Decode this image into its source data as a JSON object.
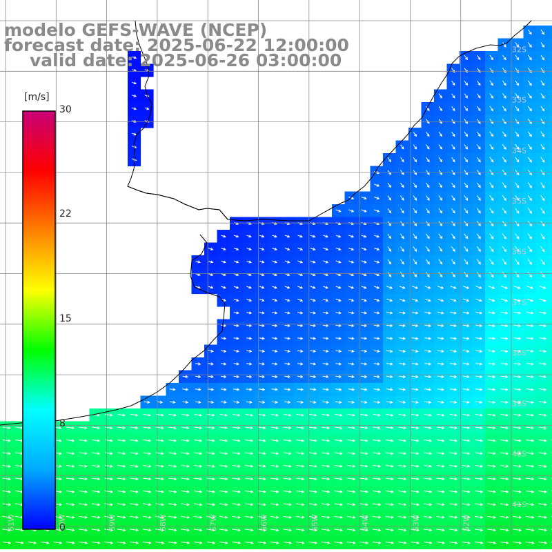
{
  "title": {
    "line1": "modelo GEFS-WAVE (NCEP)",
    "line2": "forecast date: 2025-06-22 12:00:00",
    "line3": "valid date: 2025-06-26 03:00:00"
  },
  "colorbar": {
    "unit": "[m/s]",
    "min": 0,
    "max": 30,
    "ticks": [
      {
        "value": 30,
        "label": "30"
      },
      {
        "value": 22,
        "label": "22"
      },
      {
        "value": 15,
        "label": "15"
      },
      {
        "value": 8,
        "label": "8"
      },
      {
        "value": 0,
        "label": "0"
      }
    ],
    "gradient": [
      "#0000ff",
      "#00aaff",
      "#00ffff",
      "#00ff00",
      "#ffff00",
      "#ff8000",
      "#ff0000",
      "#c80078"
    ]
  },
  "map": {
    "lat_labels": [
      "32S",
      "33S",
      "34S",
      "35S",
      "36S",
      "37S",
      "38S",
      "39S",
      "40S",
      "41S"
    ],
    "lon_labels": [
      "61W",
      "60W",
      "59W",
      "58W",
      "57W",
      "56W",
      "55W",
      "54W",
      "53W",
      "52W"
    ],
    "colors": {
      "land": "#ffffff",
      "grid": "#888888",
      "coast": "#000000",
      "arrows": "#ffffff"
    }
  }
}
